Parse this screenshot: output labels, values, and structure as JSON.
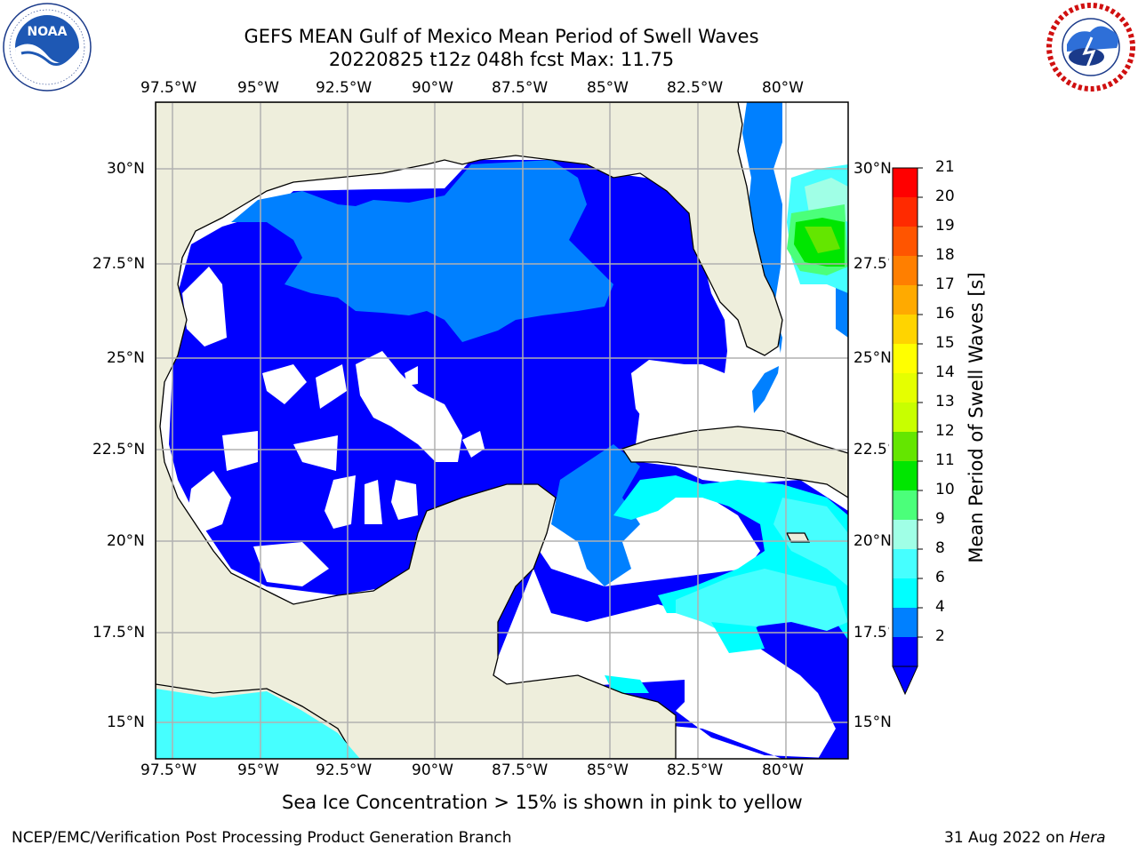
{
  "header": {
    "title_line1": "GEFS MEAN Gulf of Mexico Mean Period of Swell Waves",
    "title_line2": "20220825 t12z 048h fcst   Max: 11.75"
  },
  "logos": {
    "left": {
      "name": "NOAA",
      "ring_text": "NATIONAL OCEANIC AND ATMOSPHERIC ADMINISTRATION · U.S. DEPARTMENT OF COMMERCE"
    },
    "right": {
      "name": "NATIONAL WEATHER SERVICE"
    }
  },
  "map": {
    "lon_labels": [
      "97.5°W",
      "95°W",
      "92.5°W",
      "90°W",
      "87.5°W",
      "85°W",
      "82.5°W",
      "80°W"
    ],
    "lat_labels": [
      "30°N",
      "27.5°N",
      "25°N",
      "22.5°N",
      "20°N",
      "17.5°N",
      "15°N"
    ],
    "colors": {
      "land": "#eeeedc",
      "coast": "#000000",
      "grid": "#b0b0b0",
      "no_data": "#ffffff"
    }
  },
  "colorbar": {
    "label": "Mean Period of Swell Waves [s]",
    "ticks": [
      "21",
      "20",
      "19",
      "18",
      "17",
      "16",
      "15",
      "14",
      "13",
      "12",
      "11",
      "10",
      "9",
      "8",
      "6",
      "4",
      "2"
    ],
    "colors": [
      "#ff0000",
      "#ff2a00",
      "#ff5500",
      "#ff7f00",
      "#ffaa00",
      "#ffd400",
      "#ffff00",
      "#e5ff00",
      "#c8ff00",
      "#64e600",
      "#00e600",
      "#4bff7a",
      "#a0ffe6",
      "#46ffff",
      "#00ffff",
      "#0080ff",
      "#0000ff"
    ]
  },
  "footer": {
    "sea_ice_note": "Sea Ice Concentration > 15% is shown in pink to yellow",
    "producer": "NCEP/EMC/Verification Post Processing Product Generation Branch",
    "date_prefix": "31 Aug 2022 on ",
    "machine": "Hera"
  }
}
